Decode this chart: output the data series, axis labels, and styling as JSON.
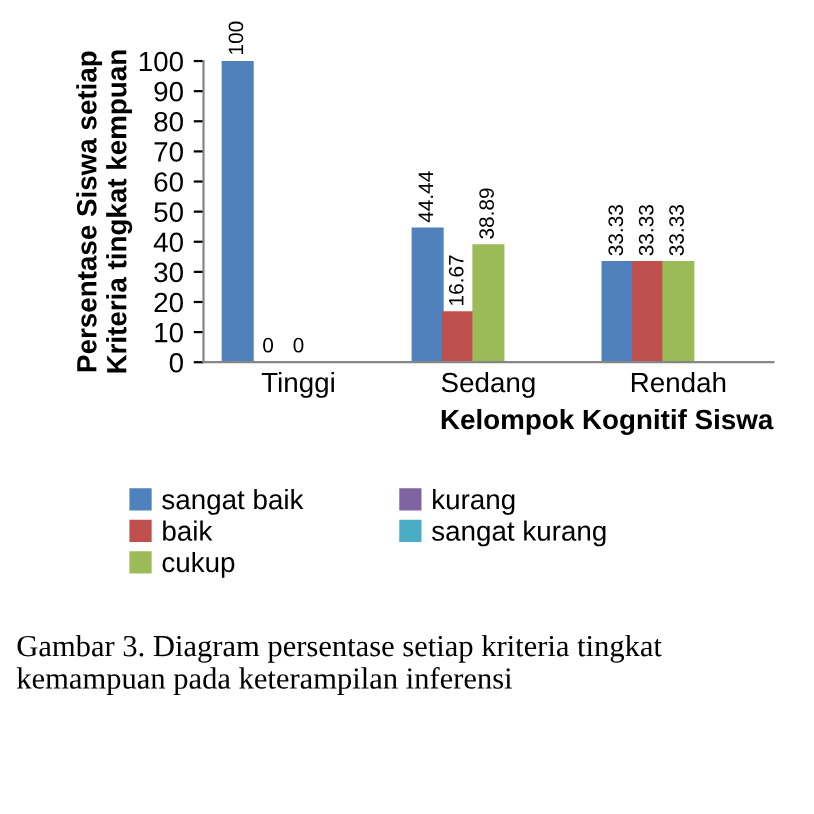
{
  "chart_data": {
    "type": "bar",
    "categories": [
      "Tinggi",
      "Sedang",
      "Rendah"
    ],
    "xlabel": "Kelompok Kognitif Siswa",
    "ylabel": "Persentase Siswa setiap\nKriteria tingkat kempuan",
    "series": [
      {
        "name": "sangat baik",
        "color": "#4f81bd",
        "values": [
          100,
          44.44,
          33.33
        ]
      },
      {
        "name": "baik",
        "color": "#c0504d",
        "values": [
          0,
          16.67,
          33.33
        ]
      },
      {
        "name": "cukup",
        "color": "#9bbb59",
        "values": [
          0,
          38.89,
          33.33
        ]
      },
      {
        "name": "kurang",
        "color": "#8064a2",
        "values": [
          null,
          null,
          null
        ]
      },
      {
        "name": "sangat kurang",
        "color": "#4bacc6",
        "values": [
          null,
          null,
          null
        ]
      }
    ],
    "ylim": [
      0,
      100
    ],
    "yticks": [
      0,
      10,
      20,
      30,
      40,
      50,
      60,
      70,
      80,
      90,
      100
    ],
    "data_labels": true,
    "grid": false,
    "legend": "bottom",
    "annotations": [
      "Gambar 3. Diagram persentase setiap kriteria tingkat kemampuan pada keterampilan inferensi"
    ]
  }
}
